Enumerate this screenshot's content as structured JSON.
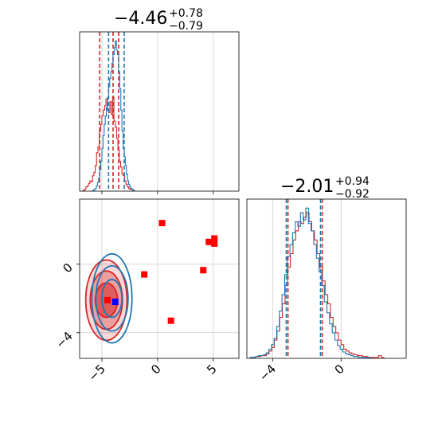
{
  "chart_data": {
    "type": "corner",
    "colors": {
      "red": "#d62728",
      "blue": "#1f77b4",
      "marker_red": "#ff0000",
      "marker_blue": "#0000ff",
      "grid": "#cccccc"
    },
    "panels": [
      {
        "id": "hist-x",
        "type": "histogram",
        "title": {
          "value": "−4.46",
          "sup": "+0.78",
          "sub": "−0.79"
        },
        "xlim": [
          -7,
          7.3
        ],
        "grid_x": [
          -5,
          0,
          5
        ],
        "xticks": [],
        "series": [
          {
            "name": "",
            "color": "red",
            "quantile_lines": [
              -5.2,
              -4.0,
              -3.5
            ],
            "bin_range": [
              -6.8,
              -2.0
            ],
            "counts": [
              0,
              1,
              2,
              5,
              6,
              9,
              12,
              11,
              18,
              22,
              30,
              45,
              52,
              70,
              78,
              88,
              95,
              100,
              108,
              95,
              92,
              105,
              90,
              110,
              82,
              75,
              62,
              48,
              35,
              28,
              20,
              18,
              12,
              8,
              5,
              3,
              2,
              2,
              1,
              0
            ]
          },
          {
            "name": "",
            "color": "blue",
            "quantile_lines": [
              -4.4,
              -3.0
            ],
            "bin_range": [
              -6.0,
              -2.0
            ],
            "counts": [
              0,
              0,
              1,
              2,
              3,
              6,
              10,
              15,
              25,
              35,
              50,
              65,
              78,
              88,
              98,
              110,
              122,
              132,
              140,
              150,
              160,
              168,
              176,
              165,
              160,
              140,
              120,
              95,
              70,
              50,
              40,
              30,
              20,
              12,
              8,
              5,
              3,
              2,
              1,
              0
            ]
          }
        ]
      },
      {
        "id": "scatter-xy",
        "type": "contour_scatter",
        "xlim": [
          -7,
          7.3
        ],
        "ylim": [
          -5.5,
          3.8
        ],
        "grid_x": [
          -5,
          0,
          5
        ],
        "grid_y": [
          0,
          -4
        ],
        "xtick_labels": [
          {
            "value": -5,
            "text": "−5"
          },
          {
            "value": 0,
            "text": "0"
          },
          {
            "value": 5,
            "text": "5"
          }
        ],
        "ytick_labels": [
          {
            "value": 0,
            "text": "0"
          },
          {
            "value": -4,
            "text": "−4"
          }
        ],
        "contours": [
          {
            "color": "red",
            "center": [
              -4.6,
              -2.1
            ],
            "radii": [
              [
                1.0,
                1.0
              ],
              [
                1.45,
                1.7
              ],
              [
                1.85,
                2.35
              ]
            ]
          },
          {
            "color": "blue",
            "center": [
              -4.1,
              -2.0
            ],
            "radii": [
              [
                0.9,
                1.1
              ],
              [
                1.45,
                1.9
              ],
              [
                1.8,
                2.6
              ]
            ]
          }
        ],
        "markers_red": [
          [
            0.4,
            2.4
          ],
          [
            4.6,
            1.3
          ],
          [
            5.1,
            1.2
          ],
          [
            5.1,
            1.5
          ],
          [
            -1.2,
            -0.6
          ],
          [
            4.1,
            -0.35
          ],
          [
            -4.5,
            -2.1
          ],
          [
            1.2,
            -3.3
          ]
        ],
        "markers_blue": [
          [
            -3.8,
            -2.2
          ]
        ]
      },
      {
        "id": "hist-y",
        "type": "histogram",
        "title": {
          "value": "−2.01",
          "sup": "+0.94",
          "sub": "−0.92"
        },
        "xlim": [
          -5.5,
          3.8
        ],
        "grid_x": [
          -4,
          0
        ],
        "xtick_labels": [
          {
            "value": -4,
            "text": "−4"
          },
          {
            "value": 0,
            "text": "0"
          }
        ],
        "series": [
          {
            "name": "",
            "color": "red",
            "quantile_lines": [
              -3.1,
              -1.1
            ],
            "bin_range": [
              -5.3,
              2.5
            ],
            "counts": [
              1,
              1,
              2,
              2,
              3,
              3,
              5,
              8,
              12,
              20,
              30,
              45,
              60,
              80,
              100,
              115,
              130,
              140,
              150,
              148,
              155,
              160,
              150,
              140,
              130,
              115,
              100,
              85,
              70,
              60,
              45,
              35,
              28,
              20,
              15,
              10,
              8,
              6,
              5,
              4,
              3,
              3,
              2,
              2,
              1,
              1,
              1,
              1,
              3,
              1
            ]
          },
          {
            "name": "",
            "color": "blue",
            "quantile_lines": [
              -3.2,
              -1.2
            ],
            "bin_range": [
              -5.3,
              1.8
            ],
            "counts": [
              1,
              1,
              2,
              3,
              3,
              4,
              6,
              10,
              15,
              22,
              35,
              52,
              70,
              92,
              112,
              125,
              138,
              150,
              145,
              160,
              152,
              165,
              148,
              140,
              125,
              110,
              95,
              80,
              62,
              50,
              38,
              28,
              20,
              14,
              10,
              7,
              5,
              4,
              3,
              2,
              2,
              1,
              1,
              1,
              1,
              0
            ]
          }
        ]
      }
    ]
  }
}
